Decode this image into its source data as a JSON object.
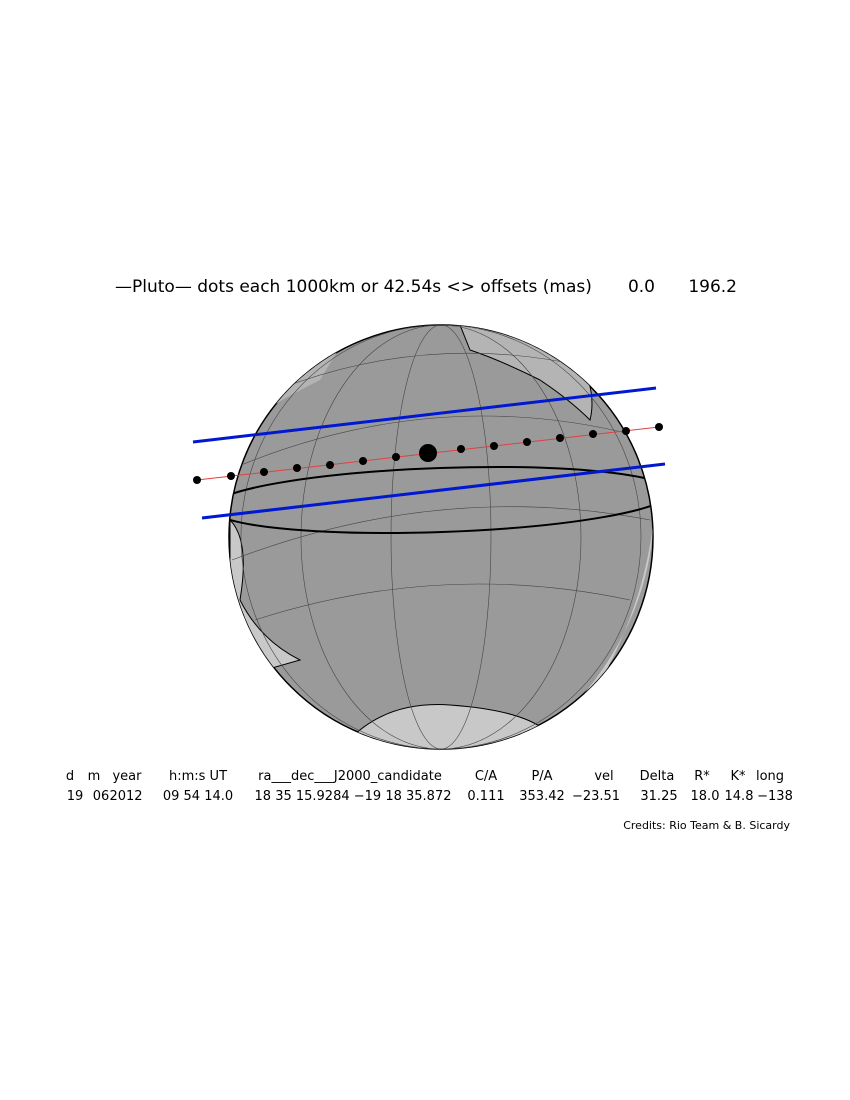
{
  "header": {
    "title": "—Pluto— dots each 1000km or 42.54s <> offsets (mas)",
    "offsets": [
      "0.0",
      "196.2"
    ]
  },
  "table": {
    "columns": [
      "d",
      "m",
      "year",
      "h:m:s UT",
      "ra___dec___J2000_candidate",
      "C/A",
      "P/A",
      "vel",
      "Delta",
      "R*",
      "K*",
      "long"
    ],
    "rows": [
      [
        "19",
        "06",
        "2012",
        "09 54 14.0",
        "18 35 15.9284 −19 18 35.872",
        "0.111",
        "353.42",
        "−23.51",
        "31.25",
        "18.0",
        "14.8",
        "−138"
      ]
    ]
  },
  "credits": "Credits: Rio Team & B. Sicardy"
}
